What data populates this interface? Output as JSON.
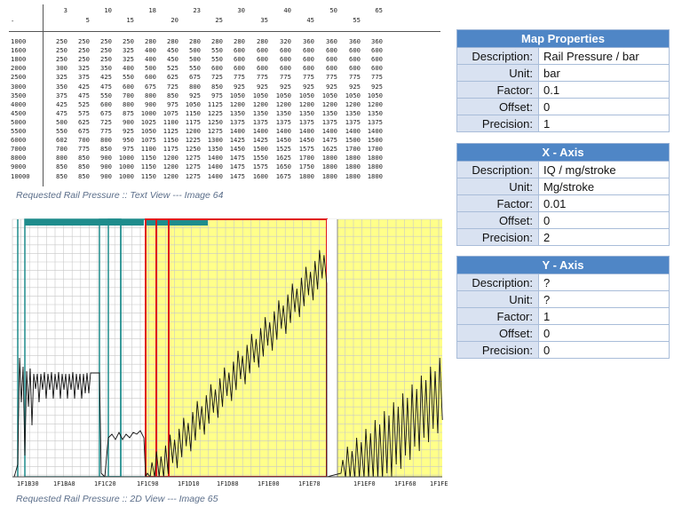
{
  "text_view": {
    "corner": "-",
    "x_headers_top": [
      "3",
      "10",
      "18",
      "23",
      "30",
      "40",
      "50",
      "65"
    ],
    "x_headers_bottom": [
      "5",
      "15",
      "20",
      "25",
      "35",
      "45",
      "55"
    ],
    "rows": [
      {
        "y": "1000",
        "v": [
          "250",
          "250",
          "250",
          "250",
          "280",
          "280",
          "280",
          "280",
          "280",
          "280",
          "320",
          "360",
          "360",
          "360",
          "360"
        ]
      },
      {
        "y": "1600",
        "v": [
          "250",
          "250",
          "250",
          "325",
          "400",
          "450",
          "500",
          "550",
          "600",
          "600",
          "600",
          "600",
          "600",
          "600",
          "600"
        ]
      },
      {
        "y": "1800",
        "v": [
          "250",
          "250",
          "250",
          "325",
          "400",
          "450",
          "500",
          "550",
          "600",
          "600",
          "600",
          "600",
          "600",
          "600",
          "600"
        ]
      },
      {
        "y": "2000",
        "v": [
          "300",
          "325",
          "350",
          "400",
          "500",
          "525",
          "550",
          "600",
          "600",
          "600",
          "600",
          "600",
          "600",
          "600",
          "600"
        ]
      },
      {
        "y": "2500",
        "v": [
          "325",
          "375",
          "425",
          "550",
          "600",
          "625",
          "675",
          "725",
          "775",
          "775",
          "775",
          "775",
          "775",
          "775",
          "775"
        ]
      },
      {
        "y": "3000",
        "v": [
          "350",
          "425",
          "475",
          "600",
          "675",
          "725",
          "800",
          "850",
          "925",
          "925",
          "925",
          "925",
          "925",
          "925",
          "925"
        ]
      },
      {
        "y": "3500",
        "v": [
          "375",
          "475",
          "550",
          "700",
          "800",
          "850",
          "925",
          "975",
          "1050",
          "1050",
          "1050",
          "1050",
          "1050",
          "1050",
          "1050"
        ]
      },
      {
        "y": "4000",
        "v": [
          "425",
          "525",
          "600",
          "800",
          "900",
          "975",
          "1050",
          "1125",
          "1200",
          "1200",
          "1200",
          "1200",
          "1200",
          "1200",
          "1200"
        ]
      },
      {
        "y": "4500",
        "v": [
          "475",
          "575",
          "675",
          "875",
          "1000",
          "1075",
          "1150",
          "1225",
          "1350",
          "1350",
          "1350",
          "1350",
          "1350",
          "1350",
          "1350"
        ]
      },
      {
        "y": "5000",
        "v": [
          "500",
          "625",
          "725",
          "900",
          "1025",
          "1100",
          "1175",
          "1250",
          "1375",
          "1375",
          "1375",
          "1375",
          "1375",
          "1375",
          "1375"
        ]
      },
      {
        "y": "5500",
        "v": [
          "550",
          "675",
          "775",
          "925",
          "1050",
          "1125",
          "1200",
          "1275",
          "1400",
          "1400",
          "1400",
          "1400",
          "1400",
          "1400",
          "1400"
        ]
      },
      {
        "y": "6000",
        "v": [
          "602",
          "700",
          "800",
          "950",
          "1075",
          "1150",
          "1225",
          "1300",
          "1425",
          "1425",
          "1450",
          "1450",
          "1475",
          "1500",
          "1500"
        ]
      },
      {
        "y": "7000",
        "v": [
          "700",
          "775",
          "850",
          "975",
          "1100",
          "1175",
          "1250",
          "1350",
          "1450",
          "1500",
          "1525",
          "1575",
          "1625",
          "1700",
          "1700"
        ]
      },
      {
        "y": "8000",
        "v": [
          "800",
          "850",
          "900",
          "1000",
          "1150",
          "1200",
          "1275",
          "1400",
          "1475",
          "1550",
          "1625",
          "1700",
          "1800",
          "1800",
          "1800"
        ]
      },
      {
        "y": "9000",
        "v": [
          "850",
          "850",
          "900",
          "1000",
          "1150",
          "1200",
          "1275",
          "1400",
          "1475",
          "1575",
          "1650",
          "1750",
          "1800",
          "1800",
          "1800"
        ]
      },
      {
        "y": "10000",
        "v": [
          "850",
          "850",
          "900",
          "1000",
          "1150",
          "1200",
          "1275",
          "1400",
          "1475",
          "1600",
          "1675",
          "1800",
          "1800",
          "1800",
          "1800"
        ]
      }
    ]
  },
  "caption_text_view": "Requested Rail Pressure :: Text View --- Image 64",
  "caption_2d_view": "Requested Rail Pressure :: 2D View --- Image 65",
  "view_2d": {
    "x_labels": [
      "1F1B30",
      "1F1BA8",
      "1F1C20",
      "1F1C98",
      "1F1D10",
      "1F1D88",
      "1F1E00",
      "1F1E78",
      "1F1EF0",
      "1F1F68",
      "1F1FE"
    ],
    "colors": {
      "highlight": "#ffff8a",
      "selection": "#e0161a",
      "map_frame": "#1e8c8c",
      "grid": "#c8c8c8"
    }
  },
  "map_properties": {
    "title": "Map Properties",
    "rows": [
      {
        "k": "Description:",
        "v": "Rail Pressure / bar"
      },
      {
        "k": "Unit:",
        "v": "bar"
      },
      {
        "k": "Factor:",
        "v": "0.1"
      },
      {
        "k": "Offset:",
        "v": "0"
      },
      {
        "k": "Precision:",
        "v": "1"
      }
    ]
  },
  "x_axis": {
    "title": "X - Axis",
    "rows": [
      {
        "k": "Description:",
        "v": "IQ / mg/stroke"
      },
      {
        "k": "Unit:",
        "v": "Mg/stroke"
      },
      {
        "k": "Factor:",
        "v": "0.01"
      },
      {
        "k": "Offset:",
        "v": "0"
      },
      {
        "k": "Precision:",
        "v": "2"
      }
    ]
  },
  "y_axis": {
    "title": "Y - Axis",
    "rows": [
      {
        "k": "Description:",
        "v": "?"
      },
      {
        "k": "Unit:",
        "v": "?"
      },
      {
        "k": "Factor:",
        "v": "1"
      },
      {
        "k": "Offset:",
        "v": "0"
      },
      {
        "k": "Precision:",
        "v": "0"
      }
    ]
  }
}
